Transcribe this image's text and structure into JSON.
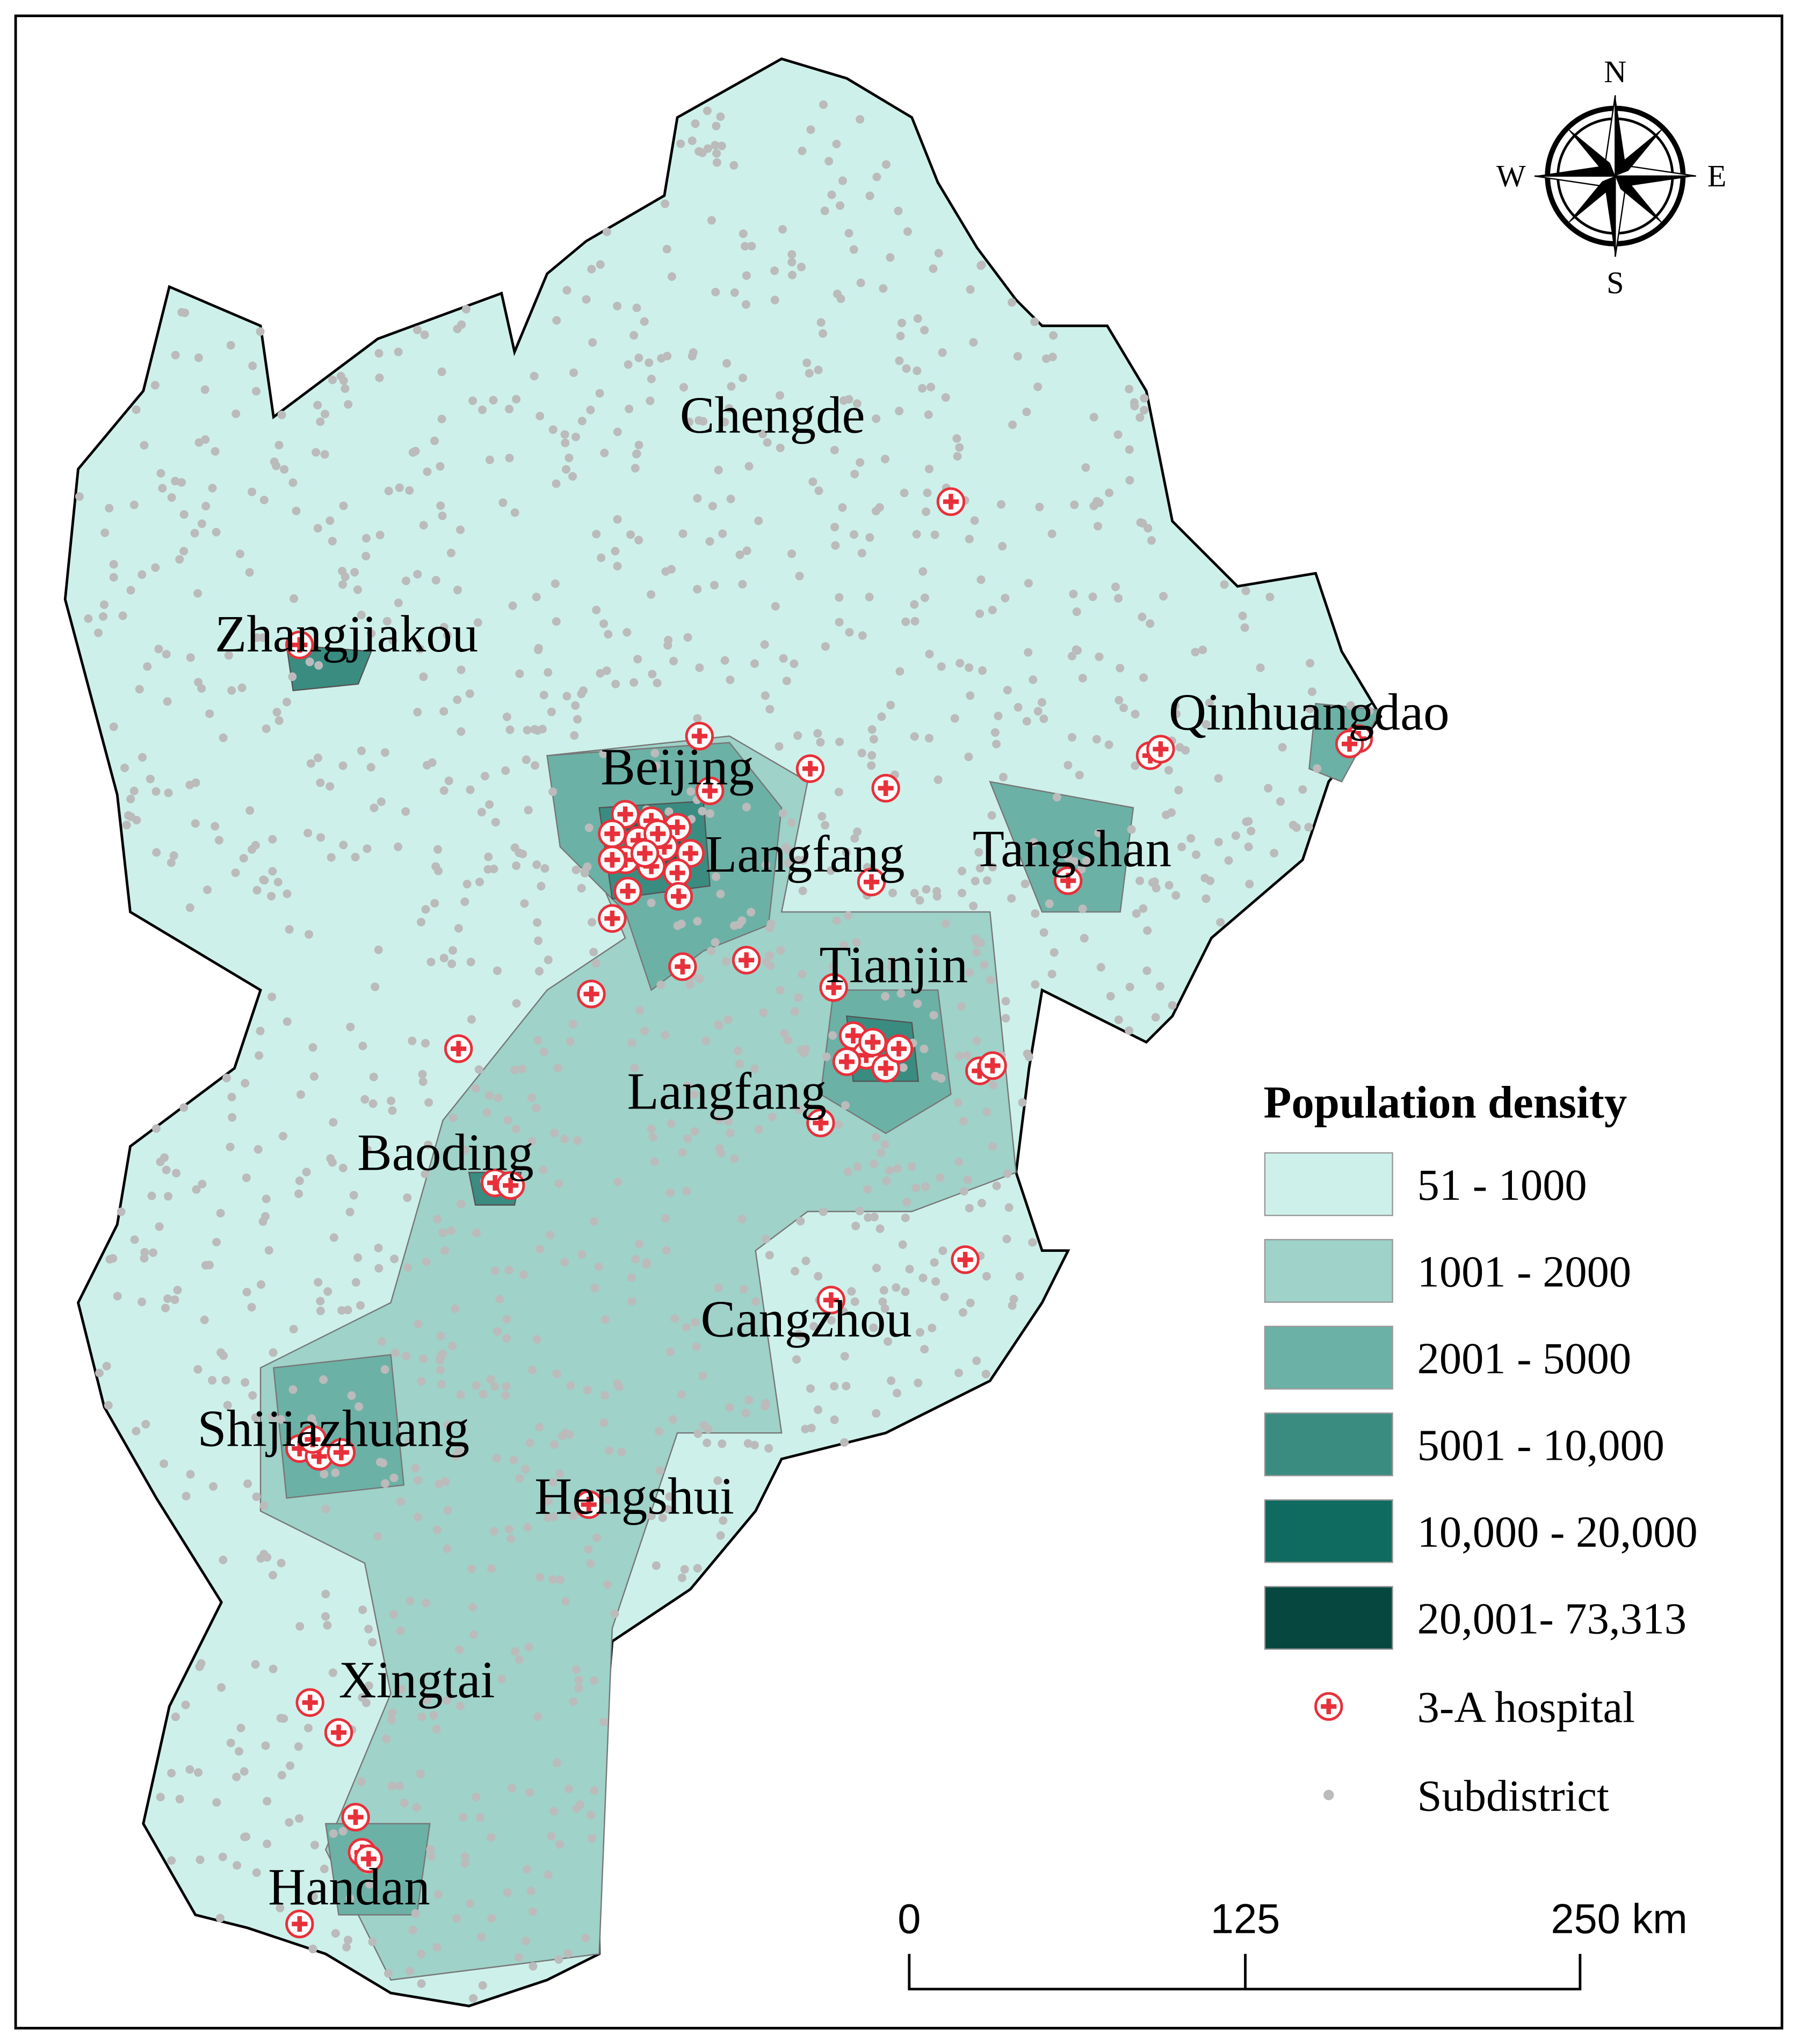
{
  "map": {
    "cities": [
      "Chengde",
      "Zhangjiakou",
      "Qinhuangdao",
      "Beijing",
      "Langfang",
      "Tangshan",
      "Tianjin",
      "Langfang",
      "Baoding",
      "Cangzhou",
      "Shijiazhuang",
      "Hengshui",
      "Xingtai",
      "Handan"
    ],
    "legend": {
      "title": "Population density",
      "classes": [
        {
          "label": "51 - 1000",
          "color": "#cdf1ea"
        },
        {
          "label": "1001 - 2000",
          "color": "#9fd2c9"
        },
        {
          "label": "2001 - 5000",
          "color": "#6cb1a6"
        },
        {
          "label": "5001 - 10,000",
          "color": "#3a8c81"
        },
        {
          "label": "10,000 - 20,000",
          "color": "#0f6b60"
        },
        {
          "label": "20,001- 73,313",
          "color": "#06483f"
        }
      ],
      "hospital": "3-A hospital",
      "subdistrict": "Subdistrict"
    },
    "scale_bar": {
      "labels": [
        "0",
        "125",
        "250 km"
      ]
    },
    "compass": {
      "north": "N",
      "east": "E",
      "south": "S",
      "west": "W"
    }
  }
}
